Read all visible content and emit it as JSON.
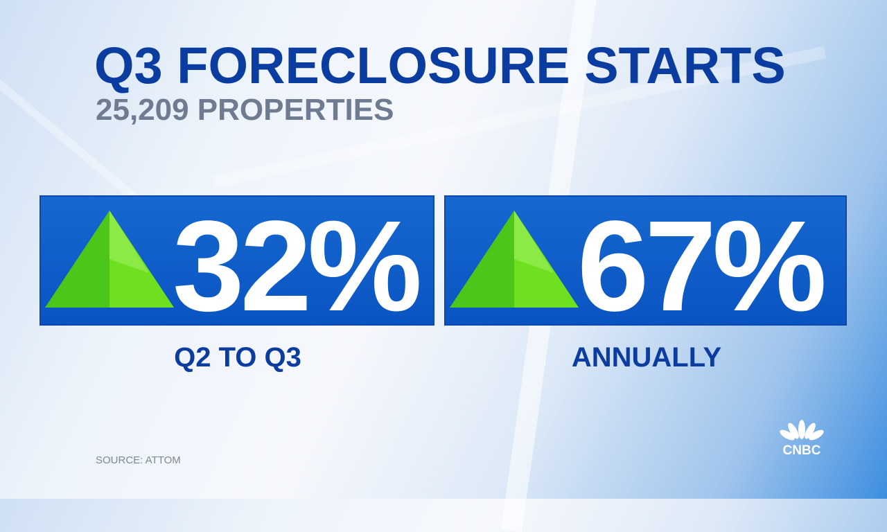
{
  "title": "Q3 FORECLOSURE STARTS",
  "subtitle": "25,209 PROPERTIES",
  "stats": [
    {
      "value": "32%",
      "direction": "up",
      "label": "Q2 TO Q3"
    },
    {
      "value": "67%",
      "direction": "up",
      "label": "ANNUALLY"
    }
  ],
  "source": "SOURCE: ATTOM",
  "logo": "CNBC",
  "colors": {
    "title": "#0b3c9f",
    "box": "#0a54c2",
    "arrow": "#5fd41c"
  }
}
